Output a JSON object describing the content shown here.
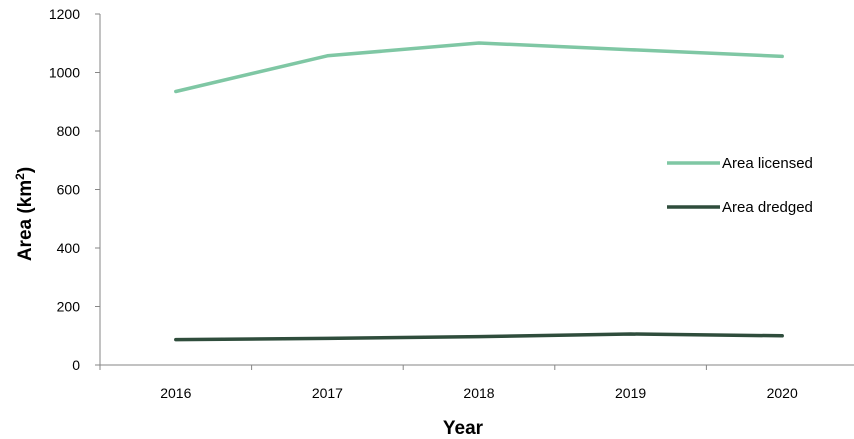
{
  "chart_data": {
    "type": "line",
    "title": "",
    "xlabel": "Year",
    "ylabel_main": "Area (km",
    "ylabel_sup": "2",
    "ylabel_close": ")",
    "categories": [
      "2016",
      "2017",
      "2018",
      "2019",
      "2020"
    ],
    "ylim": [
      0,
      1200
    ],
    "yticks": [
      "0",
      "200",
      "400",
      "600",
      "800",
      "1000",
      "1200"
    ],
    "grid": false,
    "legend_position": "right",
    "series": [
      {
        "name": "Area licensed",
        "values": [
          935,
          1057,
          1101,
          1078,
          1055
        ],
        "color": "#7fc7a4"
      },
      {
        "name": "Area dredged",
        "values": [
          87,
          91,
          97,
          106,
          100
        ],
        "color": "#2f4d3c"
      }
    ]
  }
}
